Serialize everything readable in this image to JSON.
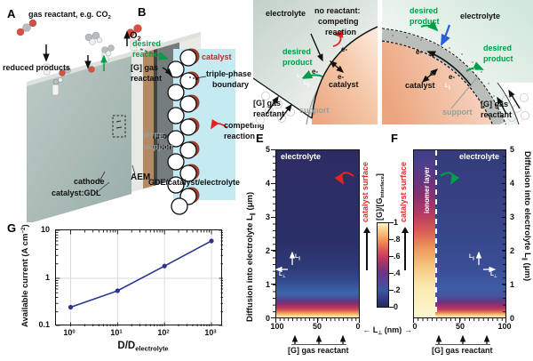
{
  "sym": {
    "e": "e-",
    "L": "L",
    "par": "∥",
    "perp": "⊥",
    "arrow_left": "←",
    "arrow_right": "→"
  },
  "colors": {
    "green": "#009e49",
    "red": "#d93025",
    "blue_arrow": "#2b5fd9",
    "navy_line": "#2a3590",
    "catalyst_dark_red": "#a33b23",
    "electrolyte_blue": "#c5eaf2"
  },
  "panelA": {
    "letter": "A",
    "gas_reactant_pre": "gas reactant, e.g. CO",
    "gas_reactant_sub": "2",
    "o2_pre": "O",
    "o2_sub": "2",
    "reduced_products": "reduced products",
    "anode_line1": "anode",
    "anode_line2": "chamber",
    "aem": "AEM",
    "cathode": "cathode",
    "catalyst_gdl": "catalyst:GDL"
  },
  "panelB": {
    "letter": "B",
    "desired_line1": "desired",
    "desired_line2": "reaction",
    "gas_line1": "[G] gas",
    "gas_line2": "reactant",
    "catalyst": "catalyst",
    "tpb_line1": "triple-phase",
    "tpb_line2": "boundary",
    "competing_line1": "competing",
    "competing_line2": "reaction",
    "ptfe_line1": "PTFE",
    "ptfe_line2": "support",
    "caption": "GDE/catalyst/electrolyte"
  },
  "panelC": {
    "letter": "C",
    "electrolyte": "electrolyte",
    "no_reactant_line1": "no reactant:",
    "no_reactant_line2": "competing",
    "no_reactant_line3": "reaction",
    "desired_line1": "desired",
    "desired_line2": "product",
    "catalyst": "catalyst",
    "support": "support",
    "gas_line1": "[G] gas",
    "gas_line2": "reactant"
  },
  "panelD": {
    "letter": "D",
    "desired_top_line1": "desired",
    "desired_top_line2": "product",
    "electrolyte": "electrolyte",
    "desired_right_line1": "desired",
    "desired_right_line2": "product",
    "catalyst": "catalyst",
    "support": "support",
    "gas_line1": "[G] gas",
    "gas_line2": "reactant"
  },
  "panelE": {
    "letter": "E",
    "electrolyte": "electrolyte",
    "catalyst_surface": "catalyst surface",
    "ylabel_pre": "Diffusion into electrolyte L",
    "ylabel_sub": "∥",
    "ylabel_post": " (μm)",
    "yticks": [
      "5",
      "4",
      "3",
      "2",
      "1",
      "0"
    ],
    "xticks": [
      "100",
      "50",
      "0"
    ],
    "gas_reactant": "[G] gas reactant"
  },
  "panelF": {
    "letter": "F",
    "electrolyte": "electrolyte",
    "ionomer_layer": "ionomer layer",
    "catalyst_surface": "catalyst surface",
    "ylabel_pre": "Diffusion into electrolyte L",
    "ylabel_sub": "∥",
    "ylabel_post": " (μm)",
    "yticks": [
      "5",
      "4",
      "3",
      "2",
      "1",
      "0"
    ],
    "xticks": [
      "0",
      "50",
      "100"
    ],
    "gas_reactant": "[G] gas reactant"
  },
  "shared_axis": {
    "xlabel_pre": "L",
    "xlabel_sub": "⊥",
    "xlabel_post": " (nm)"
  },
  "colorbar": {
    "label_pre": "[G]/[G",
    "label_sub": "interface",
    "label_post": "]",
    "ticks": [
      "1",
      ".8",
      ".6",
      ".4",
      ".2",
      "0"
    ]
  },
  "panelG": {
    "letter": "G",
    "ylabel_pre": "Available current (A cm",
    "ylabel_sup": "−2",
    "ylabel_post": ")",
    "yticks": [
      "10",
      "1",
      "0.1"
    ],
    "xticks": [
      {
        "b": "10",
        "e": "0"
      },
      {
        "b": "10",
        "e": "1"
      },
      {
        "b": "10",
        "e": "2"
      },
      {
        "b": "10",
        "e": "3"
      }
    ],
    "xlabel_pre": "D/D",
    "xlabel_sub": "electrolyte"
  },
  "chart_data": [
    {
      "type": "line",
      "panel": "G",
      "title": "",
      "xlabel": "D/D_electrolyte",
      "ylabel": "Available current (A cm^-2)",
      "x": [
        1,
        10,
        100,
        1000
      ],
      "values": [
        0.25,
        0.55,
        1.8,
        6.0
      ],
      "xscale": "log",
      "yscale": "log",
      "xlim": [
        1,
        1000
      ],
      "ylim": [
        0.1,
        10
      ],
      "line_color": "#2a3590",
      "marker": "circle",
      "grid": true
    },
    {
      "type": "heatmap",
      "panel": "E",
      "xlabel": "L_perp (nm)",
      "x_axis_ticks": [
        100,
        50,
        0
      ],
      "ylabel": "Diffusion into electrolyte L_par (um)",
      "ylim": [
        0,
        5
      ],
      "colorbar_label": "[G]/[G_interface]",
      "colorbar_range": [
        0,
        1
      ],
      "annotations": [
        "electrolyte",
        "catalyst surface",
        "[G] gas reactant"
      ],
      "description": "No ionomer: [G]/[G_interface]=1 at gas interface (L_par=0), decays to ~0 by L_par~1 um, uniform along L_perp"
    },
    {
      "type": "heatmap",
      "panel": "F",
      "xlabel": "L_perp (nm)",
      "x_axis_ticks": [
        0,
        50,
        100
      ],
      "ylabel": "Diffusion into electrolyte L_par (um)",
      "ylim": [
        0,
        5
      ],
      "colorbar_label": "[G]/[G_interface]",
      "colorbar_range": [
        0,
        1
      ],
      "ionomer_layer_boundary_nm": 25,
      "annotations": [
        "ionomer layer",
        "electrolyte",
        "catalyst surface",
        "[G] gas reactant"
      ],
      "description": "With ionomer layer (0-25 nm from catalyst surface): concentration stays high along catalyst surface to several um; bulk electrolyte ~0.2-0.3"
    }
  ]
}
